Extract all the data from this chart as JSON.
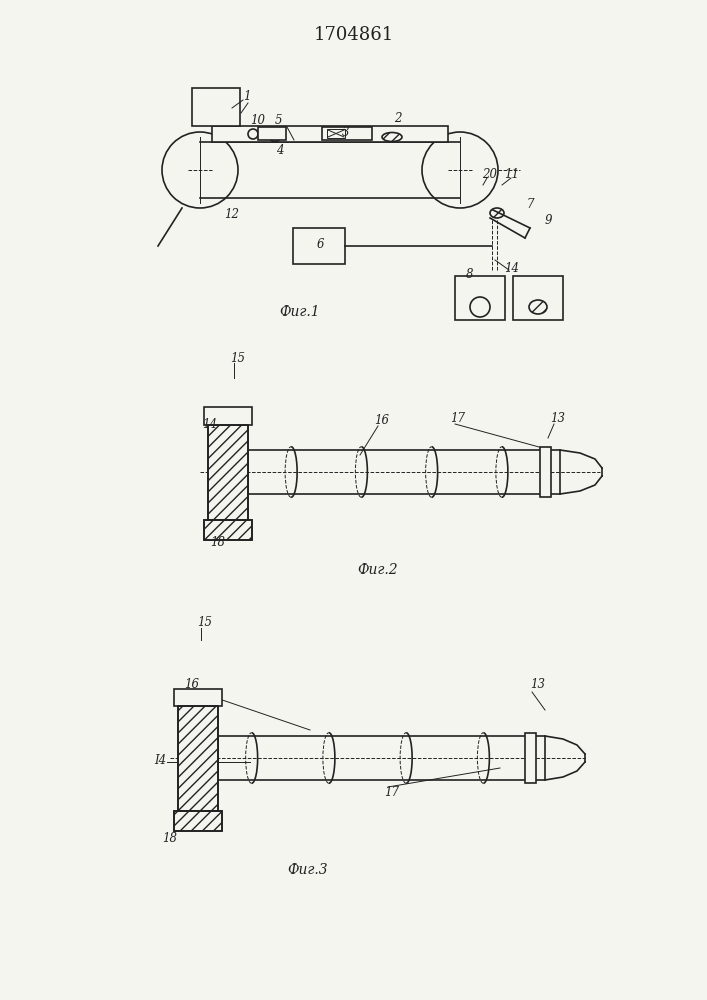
{
  "title": "1704861",
  "title_fontsize": 13,
  "fig1_label": "Фиг.1",
  "fig2_label": "Фиг.2",
  "fig3_label": "Фиг.3",
  "bg_color": "#f5f5f0",
  "line_color": "#222222",
  "lw": 1.2,
  "thin_lw": 0.7
}
